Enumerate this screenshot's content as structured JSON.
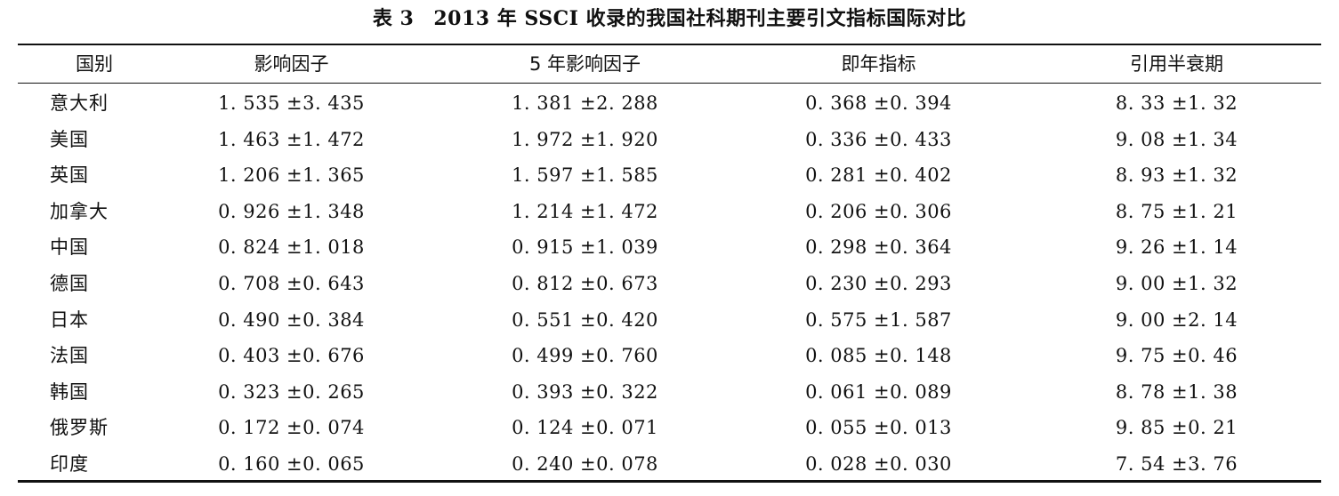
{
  "caption": {
    "label": "表 3",
    "title": "2013 年 SSCI 收录的我国社科期刊主要引文指标国际对比"
  },
  "table": {
    "headers": [
      "国别",
      "影响因子",
      "5 年影响因子",
      "即年指标",
      "引用半衰期"
    ],
    "rows": [
      [
        "意大利",
        "1. 535 ±3. 435",
        "1. 381 ±2. 288",
        "0. 368 ±0. 394",
        "8. 33 ±1. 32"
      ],
      [
        "美国",
        "1. 463 ±1. 472",
        "1. 972 ±1. 920",
        "0. 336 ±0. 433",
        "9. 08 ±1. 34"
      ],
      [
        "英国",
        "1. 206 ±1. 365",
        "1. 597 ±1. 585",
        "0. 281 ±0. 402",
        "8. 93 ±1. 32"
      ],
      [
        "加拿大",
        "0. 926 ±1. 348",
        "1. 214 ±1. 472",
        "0. 206 ±0. 306",
        "8. 75 ±1. 21"
      ],
      [
        "中国",
        "0. 824 ±1. 018",
        "0. 915 ±1. 039",
        "0. 298 ±0. 364",
        "9. 26 ±1. 14"
      ],
      [
        "德国",
        "0. 708 ±0. 643",
        "0. 812 ±0. 673",
        "0. 230 ±0. 293",
        "9. 00 ±1. 32"
      ],
      [
        "日本",
        "0. 490 ±0. 384",
        "0. 551 ±0. 420",
        "0. 575 ±1. 587",
        "9. 00 ±2. 14"
      ],
      [
        "法国",
        "0. 403 ±0. 676",
        "0. 499 ±0. 760",
        "0. 085 ±0. 148",
        "9. 75 ±0. 46"
      ],
      [
        "韩国",
        "0. 323 ±0. 265",
        "0. 393 ±0. 322",
        "0. 061 ±0. 089",
        "8. 78 ±1. 38"
      ],
      [
        "俄罗斯",
        "0. 172 ±0. 074",
        "0. 124 ±0. 071",
        "0. 055 ±0. 013",
        "9. 85 ±0. 21"
      ],
      [
        "印度",
        "0. 160 ±0. 065",
        "0. 240 ±0. 078",
        "0. 028 ±0. 030",
        "7. 54 ±3. 76"
      ]
    ]
  }
}
